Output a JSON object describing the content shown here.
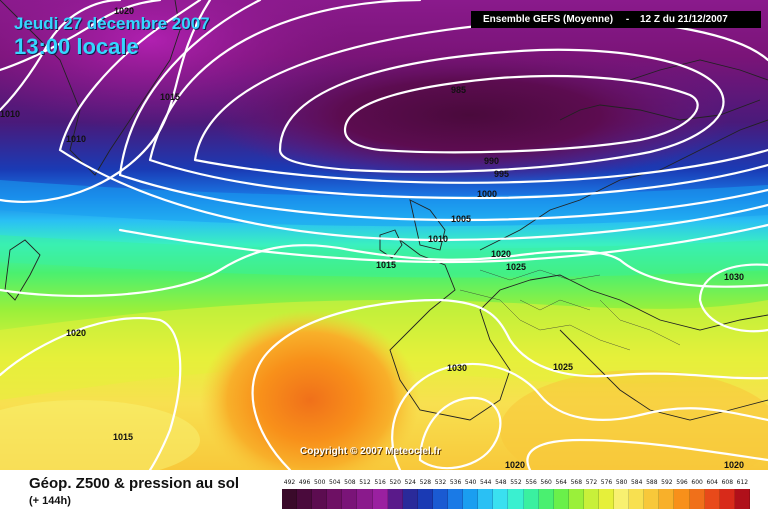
{
  "header": {
    "date": "Jeudi 27 décembre 2007",
    "time": "13:00 locale"
  },
  "run_info": {
    "model": "Ensemble GEFS (Moyenne)",
    "separator": "-",
    "run": "12 Z du 21/12/2007"
  },
  "copyright": "Copyright © 2007 Meteociel.fr",
  "isobars": [
    {
      "label": "1020",
      "value": 1020
    },
    {
      "label": "1015",
      "value": 1015
    },
    {
      "label": "1010",
      "value": 1010
    },
    {
      "label": "1010",
      "value": 1010
    },
    {
      "label": "985",
      "value": 985
    },
    {
      "label": "990",
      "value": 990
    },
    {
      "label": "995",
      "value": 995
    },
    {
      "label": "1000",
      "value": 1000
    },
    {
      "label": "1005",
      "value": 1005
    },
    {
      "label": "1010",
      "value": 1010
    },
    {
      "label": "1015",
      "value": 1015
    },
    {
      "label": "1020",
      "value": 1020
    },
    {
      "label": "1025",
      "value": 1025
    },
    {
      "label": "1030",
      "value": 1030
    },
    {
      "label": "1020",
      "value": 1020
    },
    {
      "label": "1030",
      "value": 1030
    },
    {
      "label": "1025",
      "value": 1025
    },
    {
      "label": "1015",
      "value": 1015
    },
    {
      "label": "1020",
      "value": 1020
    },
    {
      "label": "1020",
      "value": 1020
    }
  ],
  "legend": {
    "title": "Géop. Z500 & pression au sol",
    "subtitle": "(+ 144h)",
    "levels": [
      "492",
      "496",
      "500",
      "504",
      "508",
      "512",
      "516",
      "520",
      "524",
      "528",
      "532",
      "536",
      "540",
      "544",
      "548",
      "552",
      "556",
      "560",
      "564",
      "568",
      "572",
      "576",
      "580",
      "584",
      "588",
      "592",
      "596",
      "600",
      "604",
      "608",
      "612"
    ],
    "colors": [
      "#3a0a2a",
      "#4a0a3c",
      "#5c0c50",
      "#6e1064",
      "#7a1478",
      "#8a1a8c",
      "#9a20a0",
      "#5a1a8a",
      "#2a2a9a",
      "#1a3ab4",
      "#1a5ad2",
      "#1a7ae6",
      "#1a9ef0",
      "#2ac0f4",
      "#3ae0f0",
      "#3af0d0",
      "#3af0a0",
      "#4af070",
      "#6af04a",
      "#9af03a",
      "#c8f03a",
      "#e6f03a",
      "#f8f070",
      "#f8e050",
      "#f8c83a",
      "#f8b02a",
      "#f8901a",
      "#f0701a",
      "#e84a1a",
      "#d82a1a",
      "#b0101a"
    ]
  }
}
